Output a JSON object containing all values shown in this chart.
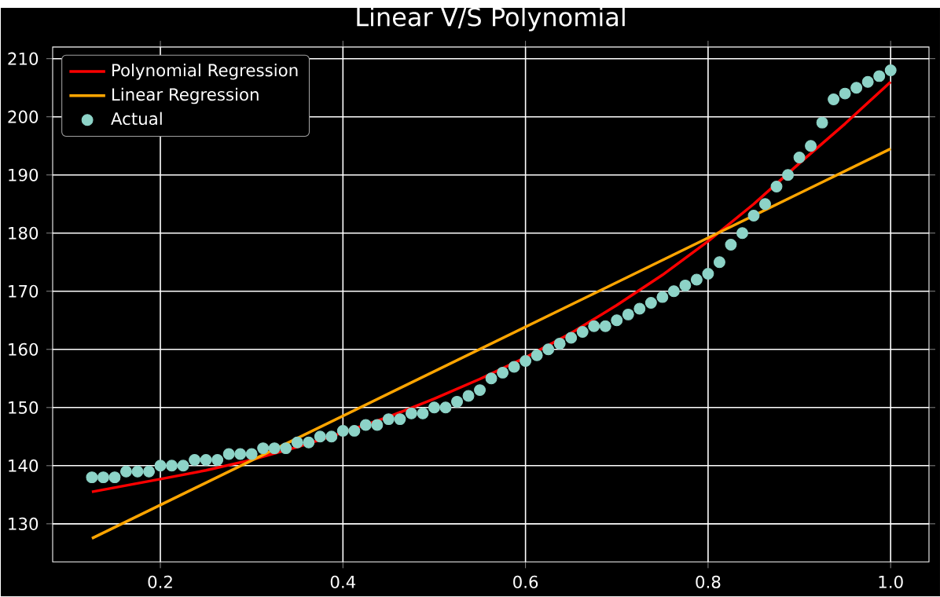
{
  "chart_data": {
    "type": "line",
    "title": "Linear V/S Polynomial",
    "xlim": [
      0.082,
      1.042
    ],
    "ylim": [
      123.45,
      212
    ],
    "xticks": [
      {
        "value": 0.2,
        "label": "0.2"
      },
      {
        "value": 0.4,
        "label": "0.4"
      },
      {
        "value": 0.6,
        "label": "0.6"
      },
      {
        "value": 0.8,
        "label": "0.8"
      },
      {
        "value": 1.0,
        "label": "1.0"
      }
    ],
    "yticks": [
      130,
      140,
      150,
      160,
      170,
      180,
      190,
      200,
      210
    ],
    "grid": true,
    "legend": "top left",
    "series": [
      {
        "name": "Polynomial Regression",
        "type": "line",
        "color": "#ff0000",
        "marker": "none",
        "x": [
          0.125,
          0.2,
          0.25,
          0.3,
          0.35,
          0.4,
          0.45,
          0.5,
          0.55,
          0.6,
          0.65,
          0.7,
          0.75,
          0.8,
          0.85,
          0.9,
          0.95,
          1.0
        ],
        "values": [
          135.5,
          137.7,
          139.2,
          141,
          143.2,
          145.7,
          148.4,
          151.5,
          154.9,
          158.6,
          162.8,
          167.6,
          172.8,
          178.6,
          185,
          192,
          198.8,
          206
        ]
      },
      {
        "name": "Linear Regression",
        "type": "line",
        "color": "#ffa500",
        "marker": "none",
        "x": [
          0.125,
          1.0
        ],
        "values": [
          127.5,
          194.5
        ]
      },
      {
        "name": "Actual",
        "type": "scatter",
        "color": "#8dd3c7",
        "marker": "circle",
        "x": [
          0.125,
          0.1375,
          0.15,
          0.1625,
          0.175,
          0.1875,
          0.2,
          0.2125,
          0.225,
          0.2375,
          0.25,
          0.2625,
          0.275,
          0.2875,
          0.3,
          0.3125,
          0.325,
          0.3375,
          0.35,
          0.3625,
          0.375,
          0.3875,
          0.4,
          0.4125,
          0.425,
          0.4375,
          0.45,
          0.4625,
          0.475,
          0.4875,
          0.5,
          0.5125,
          0.525,
          0.5375,
          0.55,
          0.5625,
          0.575,
          0.5875,
          0.6,
          0.6125,
          0.625,
          0.6375,
          0.65,
          0.6625,
          0.675,
          0.6875,
          0.7,
          0.7125,
          0.725,
          0.7375,
          0.75,
          0.7625,
          0.775,
          0.7875,
          0.8,
          0.8125,
          0.825,
          0.8375,
          0.85,
          0.8625,
          0.875,
          0.8875,
          0.9,
          0.9125,
          0.925,
          0.9375,
          0.95,
          0.9625,
          0.975,
          0.9875,
          1.0
        ],
        "values": [
          138,
          138,
          138,
          139,
          139,
          139,
          140,
          140,
          140,
          141,
          141,
          141,
          142,
          142,
          142,
          143,
          143,
          143,
          144,
          144,
          145,
          145,
          146,
          146,
          147,
          147,
          148,
          148,
          149,
          149,
          150,
          150,
          151,
          152,
          153,
          155,
          156,
          157,
          158,
          159,
          160,
          161,
          162,
          163,
          164,
          164,
          165,
          166,
          167,
          168,
          169,
          170,
          171,
          172,
          173,
          175,
          178,
          180,
          183,
          185,
          188,
          190,
          193,
          195,
          199,
          203,
          204,
          205,
          206,
          207,
          208
        ]
      }
    ]
  }
}
